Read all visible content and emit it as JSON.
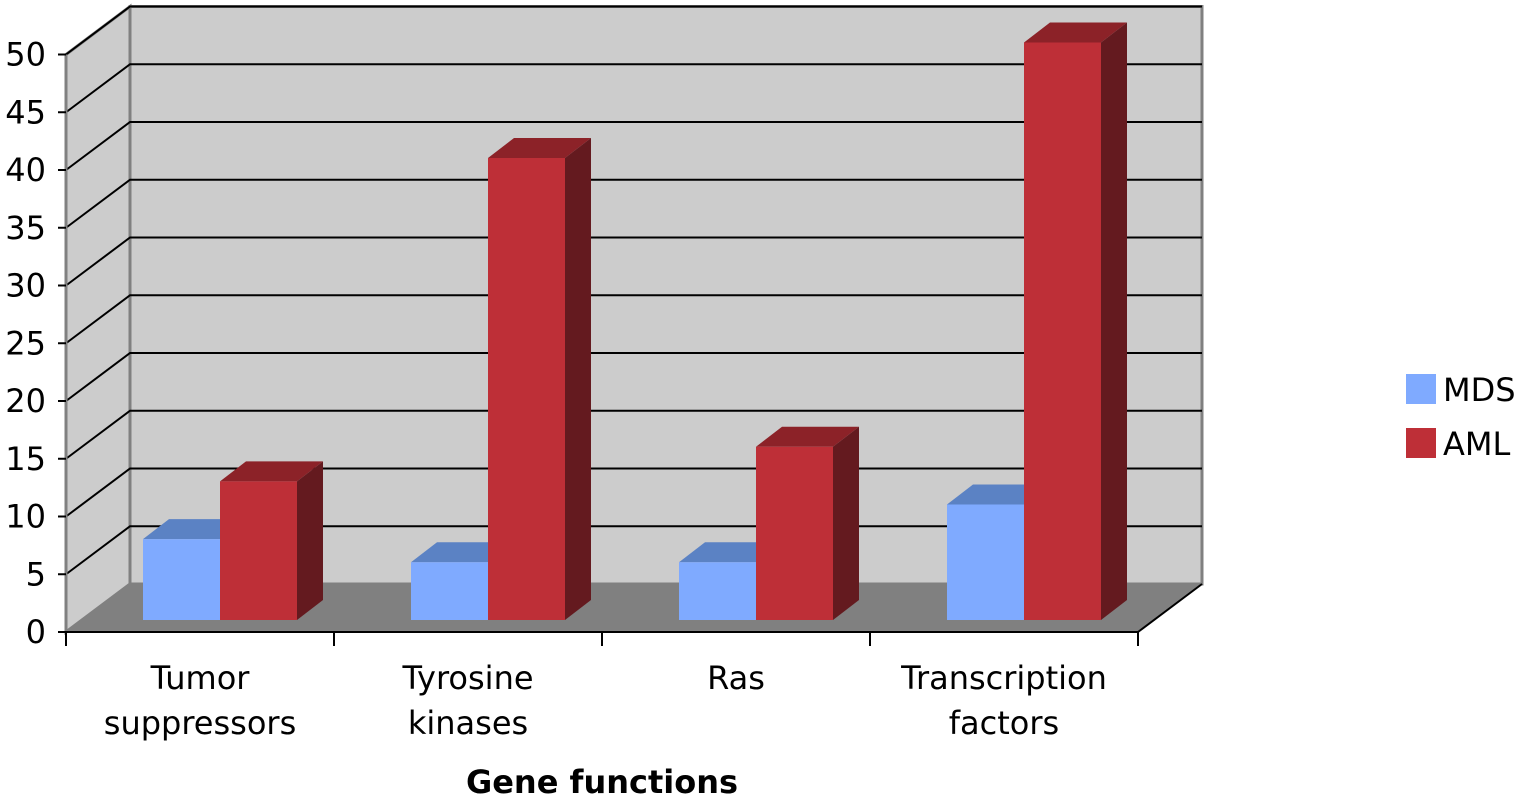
{
  "chart_data": {
    "type": "bar",
    "title": "",
    "xlabel": "Gene functions",
    "ylabel": "",
    "categories": [
      [
        "Tumor",
        "suppressors"
      ],
      [
        "Tyrosine",
        "kinases"
      ],
      [
        "Ras"
      ],
      [
        "Transcription",
        "factors"
      ]
    ],
    "series": [
      {
        "name": "MDS",
        "values": [
          7,
          5,
          5,
          10
        ],
        "color": "#7faaff",
        "top_color": "#5b82c4",
        "side_color": "#4a6aa6"
      },
      {
        "name": "AML",
        "values": [
          12,
          40,
          15,
          50
        ],
        "color": "#be2f37",
        "top_color": "#8c2228",
        "side_color": "#641a1f"
      }
    ],
    "ylim": [
      0,
      50
    ],
    "yticks": [
      "0",
      "5",
      "10",
      "15",
      "20",
      "25",
      "30",
      "35",
      "40",
      "45",
      "50"
    ],
    "grid": true,
    "legend": "right",
    "wall_color": "#cccccc",
    "floor_color": "#808080"
  }
}
